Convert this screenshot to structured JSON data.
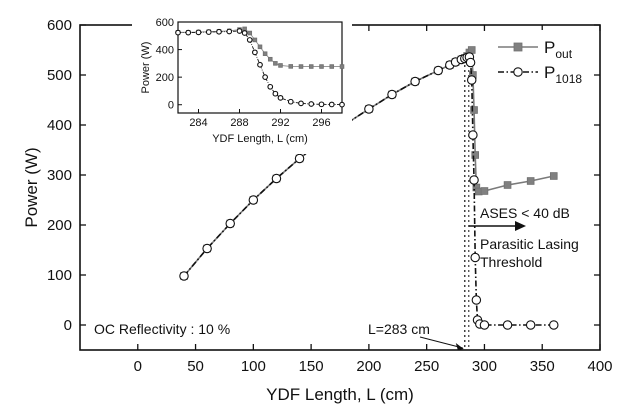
{
  "chart_data": {
    "type": "line",
    "title": "",
    "xlabel": "YDF Length, L (cm)",
    "ylabel": "Power (W)",
    "xlim": [
      -50,
      400
    ],
    "ylim": [
      -50,
      600
    ],
    "xticks": [
      0,
      50,
      100,
      150,
      200,
      250,
      300,
      350,
      400
    ],
    "yticks": [
      0,
      100,
      200,
      300,
      400,
      500,
      600
    ],
    "xtick_labels": [
      "0",
      "50",
      "100",
      "150",
      "200",
      "250",
      "300",
      "350",
      "400"
    ],
    "ytick_labels": [
      "0",
      "100",
      "200",
      "300",
      "400",
      "500",
      "600"
    ],
    "grid": false,
    "legend_position": "top-right",
    "legend": {
      "pout": {
        "main": "P",
        "sub": "out"
      },
      "p1018": {
        "main": "P",
        "sub": "1018"
      }
    },
    "series": [
      {
        "key": "pout",
        "marker": "filled-square",
        "line": "solid",
        "color": "#7a7a7a",
        "x": [
          40,
          60,
          80,
          100,
          120,
          140,
          160,
          180,
          200,
          220,
          240,
          260,
          270,
          275,
          280,
          283,
          285,
          287,
          289,
          290,
          291,
          292,
          293,
          295,
          300,
          320,
          340,
          360
        ],
        "y": [
          98,
          153,
          203,
          250,
          293,
          333,
          368,
          402,
          432,
          461,
          487,
          509,
          520,
          526,
          531,
          534,
          538,
          545,
          550,
          500,
          430,
          340,
          275,
          267,
          268,
          280,
          288,
          298
        ]
      },
      {
        "key": "p1018",
        "marker": "open-circle",
        "line": "dash-dot",
        "color": "#111111",
        "x": [
          40,
          60,
          80,
          100,
          120,
          140,
          160,
          180,
          200,
          220,
          240,
          260,
          270,
          275,
          280,
          283,
          285,
          287,
          288,
          289,
          290,
          291,
          292,
          293,
          294,
          296,
          300,
          320,
          340,
          360
        ],
        "y": [
          98,
          153,
          203,
          250,
          293,
          333,
          368,
          402,
          432,
          461,
          487,
          509,
          520,
          526,
          531,
          533,
          535,
          536,
          525,
          490,
          380,
          290,
          135,
          50,
          10,
          2,
          0,
          0,
          0,
          0
        ]
      }
    ],
    "annotations": {
      "oc_reflectivity": "OC Reflectivity : 10 %",
      "l283": "L=283 cm",
      "ases": "ASES < 40 dB",
      "parasitic_line1": "Parasitic Lasing",
      "parasitic_line2": "Threshold"
    },
    "reference_lines": {
      "x": 283,
      "style": "dotted"
    },
    "inset": {
      "xlabel": "YDF Length, L (cm)",
      "ylabel": "Power (W)",
      "xlim": [
        282,
        298
      ],
      "ylim": [
        -60,
        600
      ],
      "xticks": [
        284,
        288,
        292,
        296
      ],
      "yticks": [
        0,
        200,
        400,
        600
      ],
      "xtick_labels": [
        "284",
        "288",
        "292",
        "296"
      ],
      "ytick_labels": [
        "0",
        "200",
        "400",
        "600"
      ],
      "series": [
        {
          "key": "pout",
          "x": [
            282,
            283,
            284,
            285,
            286,
            287,
            288,
            288.5,
            289,
            289.5,
            290,
            290.5,
            291,
            291.5,
            292,
            293,
            294,
            295,
            296,
            297,
            298
          ],
          "y": [
            525,
            525,
            527,
            530,
            532,
            535,
            545,
            550,
            520,
            470,
            420,
            370,
            330,
            300,
            285,
            278,
            277,
            277,
            277,
            277,
            277
          ]
        },
        {
          "key": "p1018",
          "x": [
            282,
            283,
            284,
            285,
            286,
            287,
            288,
            288.5,
            289,
            289.5,
            290,
            290.5,
            291,
            291.5,
            292,
            293,
            294,
            295,
            296,
            297,
            298
          ],
          "y": [
            523,
            523,
            525,
            527,
            529,
            531,
            535,
            520,
            470,
            380,
            290,
            200,
            130,
            80,
            50,
            22,
            10,
            5,
            3,
            2,
            1
          ]
        }
      ]
    }
  }
}
